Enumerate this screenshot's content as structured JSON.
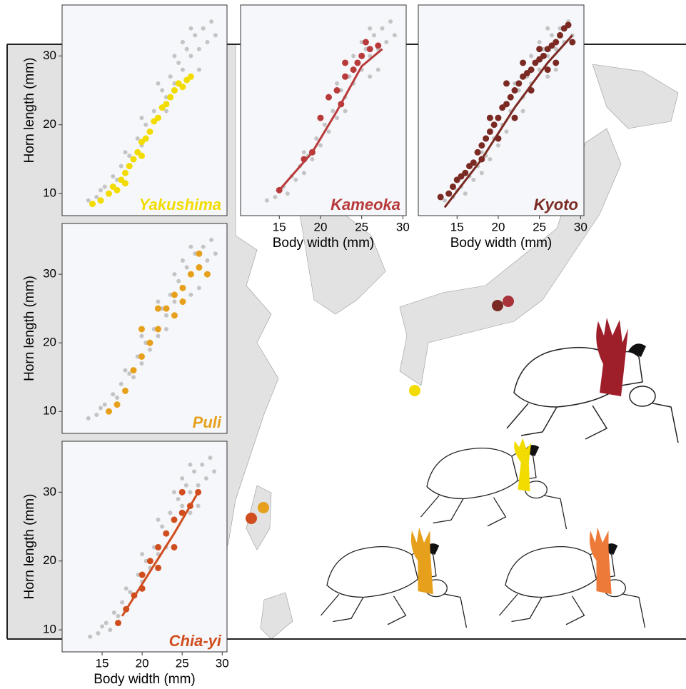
{
  "chart_data": [
    {
      "type": "scatter",
      "population": "Yakushima",
      "color": "#f2dc00",
      "ylabel": "Horn length (mm)",
      "xlim": [
        10.3,
        30.4
      ],
      "ylim": [
        6.8,
        37.4
      ],
      "yticks": [
        10,
        20,
        30
      ],
      "background": {
        "color": "#c4c4c4",
        "x": [
          13.5,
          14.5,
          15,
          15.5,
          16,
          16.5,
          17,
          17.5,
          18,
          18.5,
          19,
          19.5,
          20,
          20.5,
          21,
          21.5,
          22,
          22.5,
          23,
          23.5,
          24,
          24.5,
          25,
          25.5,
          26,
          26.5,
          27,
          27.5,
          28,
          28.5,
          29,
          24,
          25,
          26,
          22,
          20,
          18,
          27,
          26,
          23
        ],
        "y": [
          9,
          9.5,
          10.5,
          11,
          10,
          12.5,
          12,
          14,
          13,
          15.5,
          15,
          18,
          17,
          20,
          19,
          22,
          21,
          25,
          24,
          27,
          26,
          29,
          28,
          31,
          30,
          33,
          31,
          34,
          32,
          35,
          33,
          30,
          32,
          34,
          26,
          21,
          16,
          28,
          27,
          22
        ]
      },
      "series": [
        {
          "name": "Yakushima",
          "color": "#f2dc00",
          "x": [
            14,
            15,
            16,
            16.5,
            17,
            17.5,
            18,
            18.5,
            19,
            19.5,
            20,
            20.5,
            21,
            21.5,
            22,
            22.5,
            23,
            23.5,
            24,
            24.5,
            25,
            25.5,
            26,
            18,
            20
          ],
          "y": [
            8.5,
            9,
            10,
            11,
            10.5,
            12,
            13,
            14,
            15,
            16,
            17.5,
            18,
            19,
            20.5,
            21,
            22.5,
            23,
            24,
            25,
            26,
            25.5,
            26.5,
            27,
            11.5,
            15.5
          ]
        }
      ]
    },
    {
      "type": "scatter",
      "population": "Kameoka",
      "color": "#b83a3a",
      "xlabel": "Body width (mm)",
      "xlim": [
        10.3,
        30.4
      ],
      "ylim": [
        6.8,
        37.4
      ],
      "xticks": [
        15,
        20,
        25,
        30
      ],
      "background": {
        "color": "#c4c4c4",
        "x": [
          13.5,
          14.5,
          15,
          15.5,
          16,
          16.5,
          17,
          17.5,
          18,
          18.5,
          19,
          19.5,
          20,
          20.5,
          21,
          21.5,
          22,
          22.5,
          23,
          23.5,
          24,
          24.5,
          25,
          25.5,
          26,
          26.5,
          27,
          27.5,
          28,
          28.5,
          29,
          24,
          25,
          26,
          22,
          20,
          18,
          27,
          26,
          23
        ],
        "y": [
          9,
          9.5,
          10.5,
          11,
          10,
          12.5,
          12,
          14,
          13,
          15.5,
          15,
          18,
          17,
          20,
          19,
          22,
          21,
          25,
          24,
          27,
          26,
          29,
          28,
          31,
          30,
          33,
          31,
          34,
          32,
          35,
          33,
          30,
          32,
          34,
          26,
          21,
          16,
          28,
          27,
          22
        ]
      },
      "series": [
        {
          "name": "Kameoka",
          "color": "#b83a3a",
          "x": [
            15,
            18,
            19,
            20,
            21,
            22,
            23,
            24,
            25,
            26,
            27,
            23,
            24.5,
            25.5,
            22.5
          ],
          "y": [
            10.5,
            15,
            16,
            21,
            24,
            25,
            27,
            28,
            30,
            31,
            31.5,
            29,
            29,
            32,
            23
          ]
        }
      ],
      "fit": {
        "color": "#b83a3a",
        "x": [
          15,
          19,
          22,
          25,
          27.5
        ],
        "y": [
          10.5,
          16,
          22,
          28.5,
          31
        ]
      }
    },
    {
      "type": "scatter",
      "population": "Kyoto",
      "color": "#7a2a22",
      "xlabel": "Body width (mm)",
      "xlim": [
        10.3,
        30.4
      ],
      "ylim": [
        6.8,
        37.4
      ],
      "xticks": [
        15,
        20,
        25,
        30
      ],
      "background": {
        "color": "#c4c4c4",
        "x": [
          13.5,
          14.5,
          15,
          15.5,
          16,
          16.5,
          17,
          17.5,
          18,
          18.5,
          19,
          19.5,
          20,
          20.5,
          21,
          21.5,
          22,
          22.5,
          23,
          23.5,
          24,
          24.5,
          25,
          25.5,
          26,
          26.5,
          27,
          27.5,
          28,
          28.5,
          29,
          24,
          25,
          26,
          22,
          20,
          18,
          27,
          26,
          23
        ],
        "y": [
          9,
          9.5,
          10.5,
          11,
          10,
          12.5,
          12,
          14,
          13,
          15.5,
          15,
          18,
          17,
          20,
          19,
          22,
          21,
          25,
          24,
          27,
          26,
          29,
          28,
          31,
          30,
          33,
          31,
          34,
          32,
          35,
          33,
          30,
          32,
          34,
          26,
          21,
          16,
          28,
          27,
          22
        ]
      },
      "series": [
        {
          "name": "Kyoto",
          "color": "#7a2a22",
          "x": [
            13,
            14,
            14.5,
            15,
            15.5,
            16,
            16.5,
            17,
            17.5,
            18,
            18.5,
            19,
            19.5,
            20,
            20.5,
            21,
            21.5,
            22,
            22.5,
            23,
            23.5,
            24,
            24.5,
            25,
            25.5,
            26,
            26.5,
            27,
            27.5,
            28,
            28.5,
            20,
            22,
            24,
            26,
            18,
            19,
            21,
            23,
            25,
            27,
            29
          ],
          "y": [
            9.5,
            10,
            11,
            12,
            12.5,
            13,
            14,
            14.5,
            16,
            17,
            18,
            19,
            20,
            21,
            22.5,
            23,
            24,
            25,
            26,
            27,
            27.5,
            28,
            29,
            29.5,
            30,
            31,
            31.5,
            32,
            33,
            34,
            34.5,
            18,
            21,
            25,
            28,
            15,
            21,
            26,
            29,
            31,
            29,
            32
          ]
        }
      ],
      "fit": {
        "color": "#7a2a22",
        "x": [
          13.5,
          18,
          22,
          26,
          29
        ],
        "y": [
          8,
          15,
          22.5,
          29,
          33
        ]
      }
    },
    {
      "type": "scatter",
      "population": "Puli",
      "color": "#e6a01c",
      "ylabel": "Horn length (mm)",
      "xlim": [
        10.3,
        30.4
      ],
      "ylim": [
        6.8,
        37.4
      ],
      "yticks": [
        10,
        20,
        30
      ],
      "background": {
        "color": "#c4c4c4",
        "x": [
          13.5,
          14.5,
          15,
          15.5,
          16,
          16.5,
          17,
          17.5,
          18,
          18.5,
          19,
          19.5,
          20,
          20.5,
          21,
          21.5,
          22,
          22.5,
          23,
          23.5,
          24,
          24.5,
          25,
          25.5,
          26,
          26.5,
          27,
          27.5,
          28,
          28.5,
          29,
          24,
          25,
          26,
          22,
          20,
          18,
          27,
          26,
          23
        ],
        "y": [
          9,
          9.5,
          10.5,
          11,
          10,
          12.5,
          12,
          14,
          13,
          15.5,
          15,
          18,
          17,
          20,
          19,
          22,
          21,
          25,
          24,
          27,
          26,
          29,
          28,
          31,
          30,
          33,
          31,
          34,
          32,
          35,
          33,
          30,
          32,
          34,
          26,
          21,
          16,
          28,
          27,
          22
        ]
      },
      "series": [
        {
          "name": "Puli",
          "color": "#e6a01c",
          "x": [
            16,
            17,
            18,
            19,
            20,
            21,
            22,
            23,
            24,
            25,
            26,
            27,
            28,
            27,
            22,
            20,
            24,
            25
          ],
          "y": [
            10,
            11,
            13,
            16,
            18,
            20,
            22,
            25,
            27,
            28,
            30,
            31,
            30,
            33,
            25,
            22,
            24,
            26
          ]
        }
      ]
    },
    {
      "type": "scatter",
      "population": "Chia-yi",
      "color": "#d04e1e",
      "ylabel": "Horn length (mm)",
      "xlabel": "Body width (mm)",
      "xlim": [
        10,
        30.6
      ],
      "ylim": [
        6.8,
        37.4
      ],
      "xticks": [
        15,
        20,
        25,
        30
      ],
      "yticks": [
        10,
        20,
        30
      ],
      "background": {
        "color": "#c4c4c4",
        "x": [
          13.5,
          14.5,
          15,
          15.5,
          16,
          16.5,
          17,
          17.5,
          18,
          18.5,
          19,
          19.5,
          20,
          20.5,
          21,
          21.5,
          22,
          22.5,
          23,
          23.5,
          24,
          24.5,
          25,
          25.5,
          26,
          26.5,
          27,
          27.5,
          28,
          28.5,
          29,
          24,
          25,
          26,
          22,
          20,
          18,
          27,
          26,
          23
        ],
        "y": [
          9,
          9.5,
          10.5,
          11,
          10,
          12.5,
          12,
          14,
          13,
          15.5,
          15,
          18,
          17,
          20,
          19,
          22,
          21,
          25,
          24,
          27,
          26,
          29,
          28,
          31,
          30,
          33,
          31,
          34,
          32,
          35,
          33,
          30,
          32,
          34,
          26,
          21,
          16,
          28,
          27,
          22
        ]
      },
      "series": [
        {
          "name": "Chia-yi",
          "color": "#d04e1e",
          "x": [
            17,
            18,
            19,
            20,
            21,
            22,
            23,
            24,
            25,
            26,
            27,
            20,
            22,
            24,
            25
          ],
          "y": [
            11,
            13,
            15,
            18,
            20,
            22,
            24,
            26,
            27,
            28,
            30,
            16,
            19,
            22,
            30
          ]
        }
      ],
      "fit": {
        "color": "#d04e1e",
        "x": [
          17.5,
          21,
          24,
          27
        ],
        "y": [
          12,
          18.5,
          24,
          30
        ]
      }
    }
  ]
}
